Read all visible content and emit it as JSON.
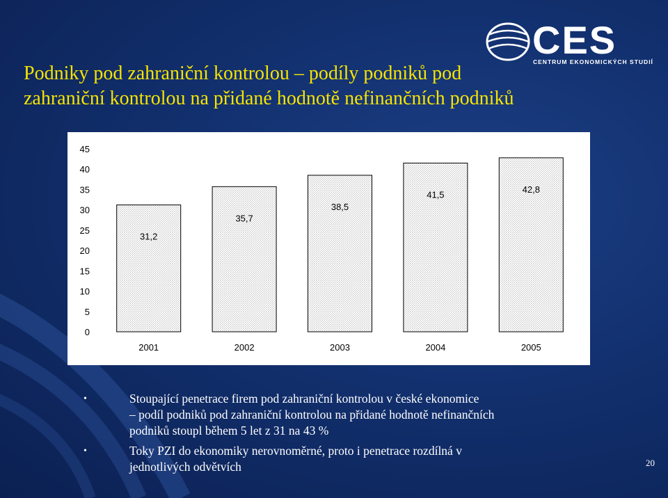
{
  "title": {
    "line1": "Podniky pod zahraniční kontrolou – podíly podniků pod",
    "line2": "zahraniční kontrolou na přidané hodnotě nefinančních podniků"
  },
  "logo": {
    "text": "CES",
    "subtitle": "CENTRUM EKONOMICKÝCH STUDIÍ"
  },
  "chart_data": {
    "type": "bar",
    "categories": [
      "2001",
      "2002",
      "2003",
      "2004",
      "2005"
    ],
    "values": [
      31.2,
      35.7,
      38.5,
      41.5,
      42.8
    ],
    "value_labels": [
      "31,2",
      "35,7",
      "38,5",
      "41,5",
      "42,8"
    ],
    "y_ticks": [
      "0",
      "5",
      "10",
      "15",
      "20",
      "25",
      "30",
      "35",
      "40",
      "45"
    ],
    "ylim": [
      0,
      45
    ],
    "grid": false,
    "legend": "none",
    "bar_fill": "hatched-light-gray",
    "colors": {
      "bar_stroke": "#000000",
      "bar_pattern": "#c8c8c8"
    }
  },
  "bullets": [
    {
      "line1": "Stoupající penetrace firem pod zahraniční kontrolou v české ekonomice",
      "line2": " – podíl podniků pod zahraniční kontrolou na přidané hodnotě nefinančních",
      "line3": "podniků stoupl během 5 let z 31 na 43 %"
    },
    {
      "line1": "Toky PZI do ekonomiky nerovnoměrné, proto i penetrace rozdílná v",
      "line2": "jednotlivých odvětvích"
    }
  ],
  "bullet_symbol": "•",
  "page_number": "20",
  "colors": {
    "background": "#12306e",
    "title": "#f7e400",
    "text": "#ffffff"
  }
}
